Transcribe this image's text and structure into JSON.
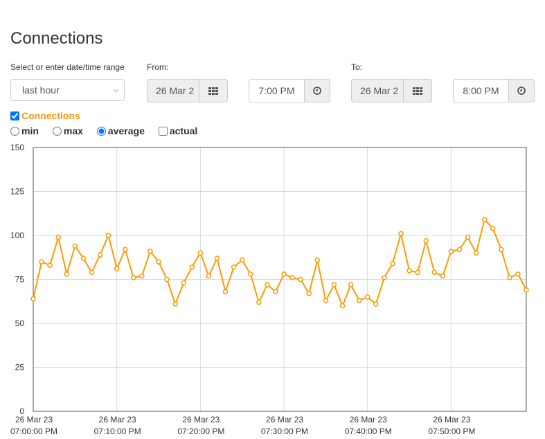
{
  "page": {
    "title": "Connections"
  },
  "range": {
    "label": "Select or enter date/time range",
    "selected": "last hour"
  },
  "from": {
    "label": "From:",
    "date": "26 Mar 2",
    "time": "7:00 PM"
  },
  "to": {
    "label": "To:",
    "date": "26 Mar 2",
    "time": "8:00 PM"
  },
  "series_toggle": {
    "label": "Connections",
    "checked": true
  },
  "modes": [
    {
      "label": "min",
      "type": "radio",
      "checked": false
    },
    {
      "label": "max",
      "type": "radio",
      "checked": false
    },
    {
      "label": "average",
      "type": "radio",
      "checked": true
    },
    {
      "label": "actual",
      "type": "checkbox",
      "checked": false
    }
  ],
  "colors": {
    "series": "#ff9900",
    "accent_text": "#ff9900",
    "grid": "#d9d9d9"
  },
  "icons": {
    "calendar": "calendar-grid-icon",
    "clock": "clock-icon"
  },
  "chart_data": {
    "type": "line",
    "title": "",
    "xlabel": "",
    "ylabel": "",
    "ylim": [
      0,
      150
    ],
    "yticks": [
      0,
      25,
      50,
      75,
      100,
      125,
      150
    ],
    "xlim": [
      "2023-03-26 19:00:00",
      "2023-03-26 19:59:00"
    ],
    "xticks": [
      {
        "date": "26 Mar 23",
        "time": "07:00:00 PM"
      },
      {
        "date": "26 Mar 23",
        "time": "07:10:00 PM"
      },
      {
        "date": "26 Mar 23",
        "time": "07:20:00 PM"
      },
      {
        "date": "26 Mar 23",
        "time": "07:30:00 PM"
      },
      {
        "date": "26 Mar 23",
        "time": "07:40:00 PM"
      },
      {
        "date": "26 Mar 23",
        "time": "07:50:00 PM"
      }
    ],
    "grid": true,
    "legend": "none",
    "series": [
      {
        "x": [
          "19:00",
          "19:01",
          "19:02",
          "19:03",
          "19:04",
          "19:05",
          "19:06",
          "19:07",
          "19:08",
          "19:09",
          "19:10",
          "19:11",
          "19:12",
          "19:13",
          "19:14",
          "19:15",
          "19:16",
          "19:17",
          "19:18",
          "19:19",
          "19:20",
          "19:21",
          "19:22",
          "19:23",
          "19:24",
          "19:25",
          "19:26",
          "19:27",
          "19:28",
          "19:29",
          "19:30",
          "19:31",
          "19:32",
          "19:33",
          "19:34",
          "19:35",
          "19:36",
          "19:37",
          "19:38",
          "19:39",
          "19:40",
          "19:41",
          "19:42",
          "19:43",
          "19:44",
          "19:45",
          "19:46",
          "19:47",
          "19:48",
          "19:49",
          "19:50",
          "19:51",
          "19:52",
          "19:53",
          "19:54",
          "19:55",
          "19:56",
          "19:57",
          "19:58",
          "19:59"
        ],
        "values": [
          64,
          85,
          83,
          99,
          78,
          94,
          87,
          79,
          89,
          100,
          81,
          92,
          76,
          77,
          91,
          85,
          75,
          61,
          73,
          82,
          90,
          77,
          87,
          68,
          82,
          86,
          78,
          62,
          72,
          68,
          78,
          76,
          75,
          67,
          86,
          63,
          72,
          60,
          72,
          63,
          65,
          61,
          76,
          84,
          101,
          80,
          79,
          97,
          79,
          77,
          91,
          92,
          99,
          90,
          109,
          104,
          92,
          76,
          78,
          69
        ]
      }
    ]
  }
}
